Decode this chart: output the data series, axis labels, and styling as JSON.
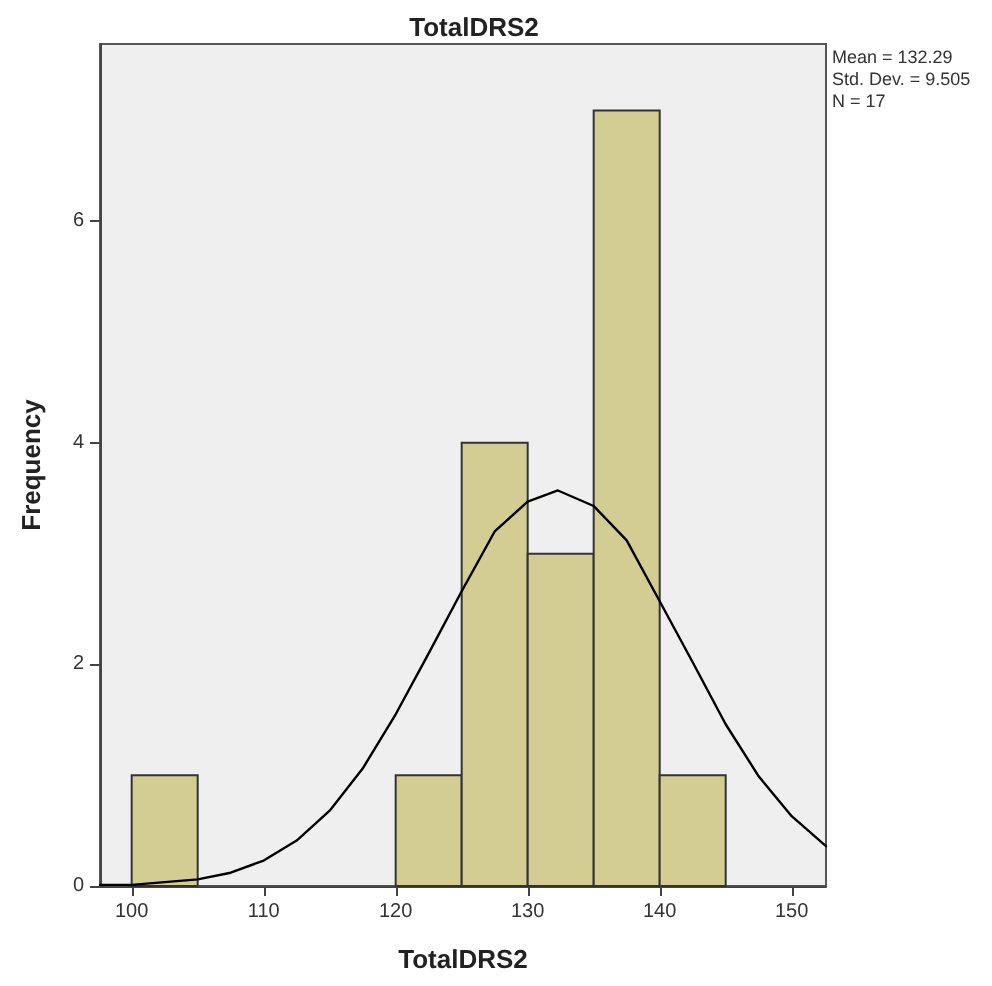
{
  "chart_data": {
    "type": "histogram",
    "title": "TotalDRS2",
    "xlabel": "TotalDRS2",
    "ylabel": "Frequency",
    "bins": [
      100,
      105,
      110,
      115,
      120,
      125,
      130,
      135,
      140,
      145
    ],
    "values": [
      1,
      0,
      0,
      0,
      1,
      4,
      3,
      7,
      1
    ],
    "color": "#d3cd94",
    "series": [
      {
        "type": "line",
        "color": "#000000",
        "x": [
          97.6,
          100,
          105,
          107.5,
          110,
          112.5,
          115,
          117.5,
          120,
          122.5,
          125,
          127.5,
          130,
          132.29,
          135,
          137.5,
          140,
          142.5,
          145,
          147.5,
          150,
          152.6
        ],
        "values": [
          0.01,
          0.01,
          0.06,
          0.12,
          0.23,
          0.41,
          0.68,
          1.06,
          1.55,
          2.1,
          2.66,
          3.2,
          3.47,
          3.57,
          3.43,
          3.12,
          2.57,
          2.02,
          1.46,
          0.99,
          0.63,
          0.36
        ]
      }
    ],
    "xlim": [
      97.6,
      152.6
    ],
    "xticks": [
      100,
      110,
      120,
      130,
      140,
      150
    ],
    "ylim": [
      0,
      7.6
    ],
    "yticks": [
      0,
      2,
      4,
      6
    ],
    "grid": false,
    "marker": "none",
    "line_style": "solid",
    "annotations": [
      "Mean = 132.29",
      "Std. Dev. = 9.505",
      "N = 17"
    ]
  }
}
